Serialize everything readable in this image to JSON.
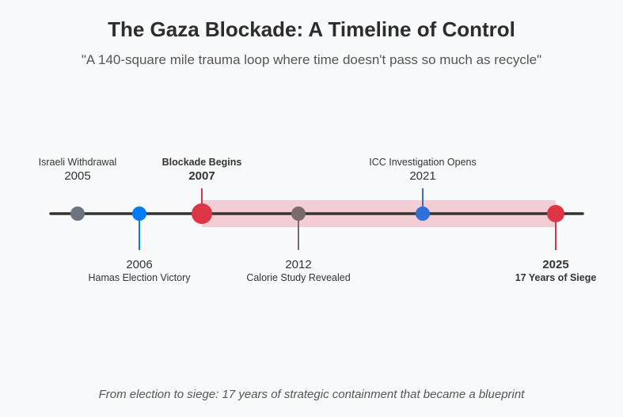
{
  "header": {
    "title": "The Gaza Blockade: A Timeline of Control",
    "subtitle": "\"A 140-square mile trauma loop where time doesn't pass so much as recycle\""
  },
  "footer": {
    "caption": "From election to siege: 17 years of strategic containment that became a blueprint"
  },
  "timeline": {
    "blockade_band": {
      "start_year": 2007,
      "end_year": 2025,
      "color": "#f2cdd3"
    },
    "axis_color": "#333333",
    "events": [
      {
        "id": "withdrawal",
        "year": "2005",
        "label": "Israeli Withdrawal",
        "side": "above",
        "label_first": true,
        "bold": false,
        "color": "#6c757d",
        "stem": false,
        "big": false
      },
      {
        "id": "election",
        "year": "2006",
        "label": "Hamas Election Victory",
        "side": "below",
        "label_first": false,
        "bold": false,
        "color": "#007bff",
        "stem": true,
        "big": false
      },
      {
        "id": "blockade",
        "year": "2007",
        "label": "Blockade Begins",
        "side": "above",
        "label_first": true,
        "bold": true,
        "color": "#dc3545",
        "stem": true,
        "big": true
      },
      {
        "id": "calorie",
        "year": "2012",
        "label": "Calorie Study Revealed",
        "side": "below",
        "label_first": false,
        "bold": false,
        "color": "#7a6a6c",
        "stem": true,
        "big": false
      },
      {
        "id": "icc",
        "year": "2021",
        "label": "ICC Investigation Opens",
        "side": "above",
        "label_first": true,
        "bold": false,
        "color": "#2f6fd8",
        "stem": true,
        "big": false
      },
      {
        "id": "siege",
        "year": "2025",
        "label": "17 Years of Siege",
        "side": "below",
        "label_first": false,
        "bold": true,
        "color": "#dc3545",
        "stem": true,
        "big": false
      }
    ]
  }
}
